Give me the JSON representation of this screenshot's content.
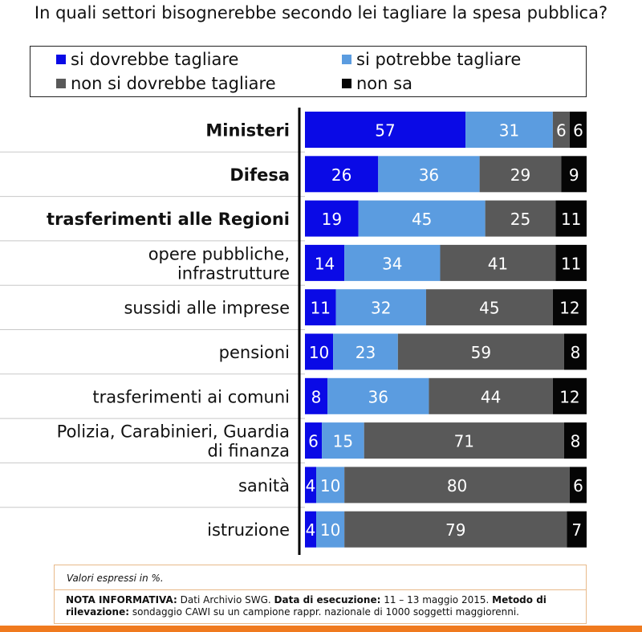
{
  "title": "In quali settori bisognerebbe secondo lei tagliare la spesa pubblica?",
  "legend": [
    {
      "label": "si dovrebbe tagliare",
      "color": "#0a0ae6"
    },
    {
      "label": "si potrebbe tagliare",
      "color": "#5b9ce0"
    },
    {
      "label": "non si dovrebbe tagliare",
      "color": "#595959"
    },
    {
      "label": "non sa",
      "color": "#050505"
    }
  ],
  "chart_data": {
    "type": "bar",
    "orientation": "horizontal",
    "stacked": true,
    "categories": [
      "Ministeri",
      "Difesa",
      "trasferimenti alle Regioni",
      "opere pubbliche, infrastrutture",
      "sussidi alle imprese",
      "pensioni",
      "trasferimenti ai comuni",
      "Polizia, Carabinieri, Guardia di finanza",
      "sanità",
      "istruzione"
    ],
    "bold_categories": [
      "Ministeri",
      "Difesa",
      "trasferimenti alle Regioni"
    ],
    "series": [
      {
        "name": "si dovrebbe tagliare",
        "color": "#0a0ae6",
        "values": [
          57,
          26,
          19,
          14,
          11,
          10,
          8,
          6,
          4,
          4
        ]
      },
      {
        "name": "si potrebbe tagliare",
        "color": "#5b9ce0",
        "values": [
          31,
          36,
          45,
          34,
          32,
          23,
          36,
          15,
          10,
          10
        ]
      },
      {
        "name": "non si dovrebbe tagliare",
        "color": "#595959",
        "values": [
          6,
          29,
          25,
          41,
          45,
          59,
          44,
          71,
          80,
          79
        ]
      },
      {
        "name": "non sa",
        "color": "#050505",
        "values": [
          6,
          9,
          11,
          11,
          12,
          8,
          12,
          8,
          6,
          7
        ]
      }
    ],
    "xlim": [
      0,
      100
    ],
    "legend_position": "top",
    "grid": false
  },
  "notes": {
    "valori": "Valori espressi in %.",
    "nota_label": "NOTA INFORMATIVA:",
    "nota_text1": " Dati Archivio SWG. ",
    "data_label": "Data di esecuzione:",
    "data_text": " 11 – 13 maggio 2015. ",
    "metodo_label": "Metodo di rilevazione:",
    "metodo_text": " sondaggio CAWI su un campione rappr. nazionale di 1000 soggetti maggiorenni."
  }
}
